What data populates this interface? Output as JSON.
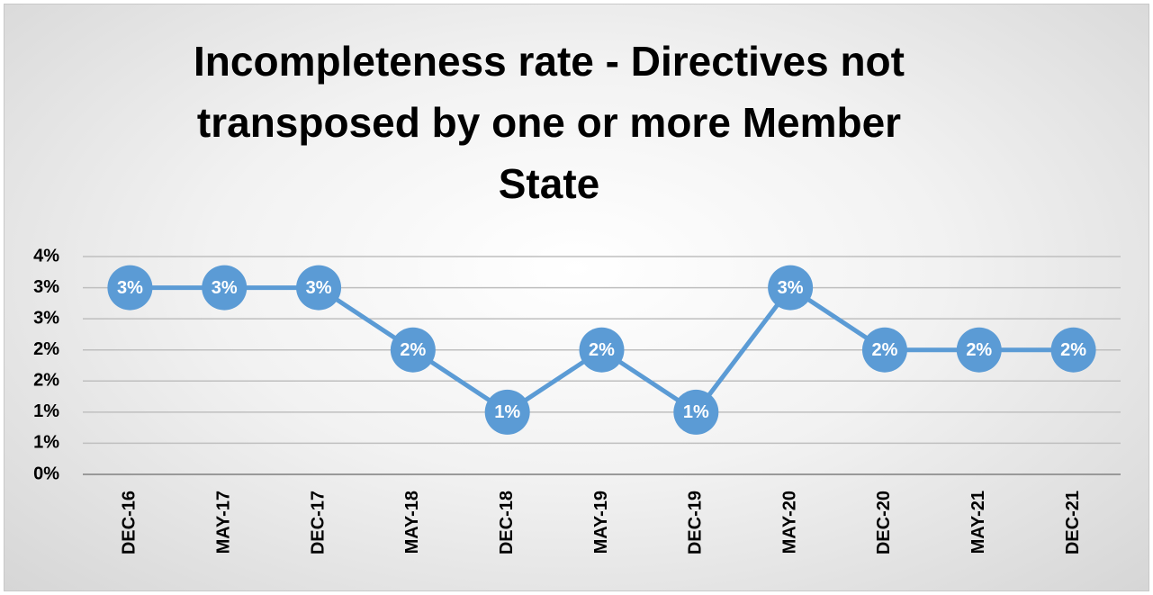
{
  "chart_data": {
    "type": "line",
    "title": "Incompleteness rate - Directives not transposed by one or more Member State",
    "categories": [
      "DEC-16",
      "MAY-17",
      "DEC-17",
      "MAY-18",
      "DEC-18",
      "MAY-19",
      "DEC-19",
      "MAY-20",
      "DEC-20",
      "MAY-21",
      "DEC-21"
    ],
    "series": [
      {
        "name": "Incompleteness rate",
        "color": "#5b9bd5",
        "values": [
          3,
          3,
          3,
          2,
          1,
          2,
          1,
          3,
          2,
          2,
          2
        ]
      }
    ],
    "ylim": [
      0,
      3.5
    ],
    "yticks": [
      {
        "value": 0,
        "label": "0%"
      },
      {
        "value": 0.5,
        "label": "1%"
      },
      {
        "value": 1,
        "label": "1%"
      },
      {
        "value": 1.5,
        "label": "2%"
      },
      {
        "value": 2,
        "label": "2%"
      },
      {
        "value": 2.5,
        "label": "3%"
      },
      {
        "value": 3,
        "label": "3%"
      },
      {
        "value": 3.5,
        "label": "4%"
      }
    ],
    "grid": true,
    "data_labels": true
  }
}
